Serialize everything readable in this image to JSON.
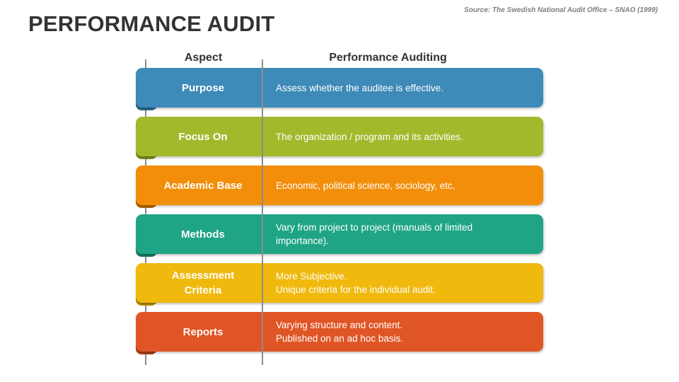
{
  "slide": {
    "title": "PERFORMANCE AUDIT",
    "source": "Source: The Swedish National Audit Office – SNAO (1999)"
  },
  "table": {
    "headers": {
      "aspect": "Aspect",
      "performance": "Performance Auditing"
    },
    "rows": [
      {
        "aspect": "Purpose",
        "description": "Assess whether the auditee is effective.",
        "color": "#3e8ab8",
        "shade": "#2c6a8f"
      },
      {
        "aspect": "Focus On",
        "description": "The organization / program and its activities.",
        "color": "#a4b82c",
        "shade": "#7e8e1f"
      },
      {
        "aspect": "Academic Base",
        "description": "Economic, political science, sociology, etc.",
        "color": "#f28e0a",
        "shade": "#b86a05"
      },
      {
        "aspect": "Methods",
        "description": "Vary from project to project (manuals of limited\nimportance).",
        "color": "#1fa585",
        "shade": "#167c64"
      },
      {
        "aspect": "Assessment\nCriteria",
        "description": "More Subjective.\nUnique criteria for the individual audit.",
        "color": "#f0b90e",
        "shade": "#b88c08"
      },
      {
        "aspect": "Reports",
        "description": "Varying structure and content.\nPublished on an ad hoc basis.",
        "color": "#e05525",
        "shade": "#a93e19"
      }
    ]
  }
}
